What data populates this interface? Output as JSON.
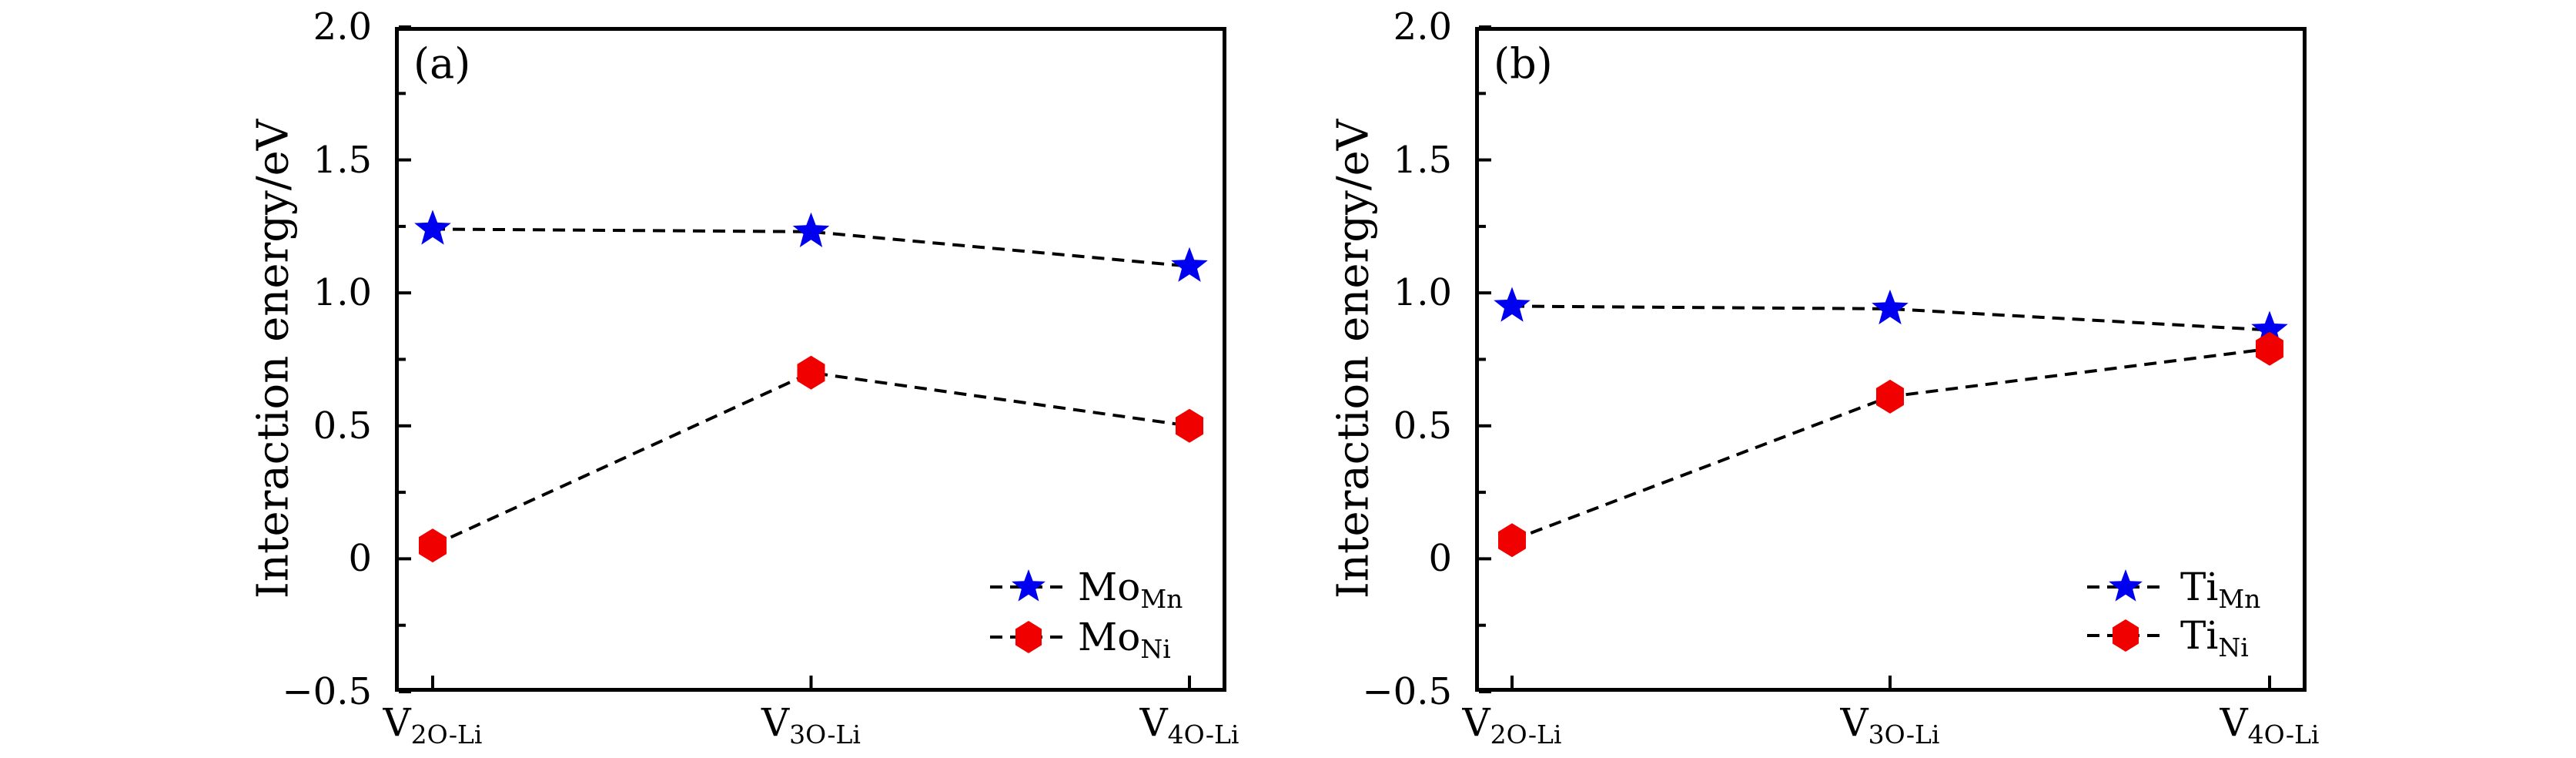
{
  "page": {
    "background": "#ffffff"
  },
  "chart_data": [
    {
      "type": "line",
      "panel_label": "(a)",
      "ylabel": "Interaction energy/eV",
      "xlabel": "",
      "categories": [
        {
          "main": "V",
          "sub": "2O-Li"
        },
        {
          "main": "V",
          "sub": "3O-Li"
        },
        {
          "main": "V",
          "sub": "4O-Li"
        }
      ],
      "ylim": [
        -0.5,
        2.0
      ],
      "y_major_ticks": [
        {
          "value": 2.0,
          "label": "2.0"
        },
        {
          "value": 1.5,
          "label": "1.5"
        },
        {
          "value": 1.0,
          "label": "1.0"
        },
        {
          "value": 0.5,
          "label": "0.5"
        },
        {
          "value": 0.0,
          "label": "0"
        },
        {
          "value": -0.5,
          "label": "−0.5"
        }
      ],
      "y_minor_ticks": [
        1.75,
        1.25,
        0.75,
        0.25,
        -0.25
      ],
      "grid": false,
      "legend_position": "lower right",
      "line_style": "dashed",
      "line_color": "#000000",
      "series": [
        {
          "label_main": "Mo",
          "label_sub": "Mn",
          "marker": "star",
          "marker_color": "#0000f0",
          "values": [
            1.24,
            1.23,
            1.1
          ]
        },
        {
          "label_main": "Mo",
          "label_sub": "Ni",
          "marker": "hexagon",
          "marker_color": "#f10000",
          "values": [
            0.05,
            0.7,
            0.5
          ]
        }
      ]
    },
    {
      "type": "line",
      "panel_label": "(b)",
      "ylabel": "Interaction energy/eV",
      "xlabel": "",
      "categories": [
        {
          "main": "V",
          "sub": "2O-Li"
        },
        {
          "main": "V",
          "sub": "3O-Li"
        },
        {
          "main": "V",
          "sub": "4O-Li"
        }
      ],
      "ylim": [
        -0.5,
        2.0
      ],
      "y_major_ticks": [
        {
          "value": 2.0,
          "label": "2.0"
        },
        {
          "value": 1.5,
          "label": "1.5"
        },
        {
          "value": 1.0,
          "label": "1.0"
        },
        {
          "value": 0.5,
          "label": "0.5"
        },
        {
          "value": 0.0,
          "label": "0"
        },
        {
          "value": -0.5,
          "label": "−0.5"
        }
      ],
      "y_minor_ticks": [
        1.75,
        1.25,
        0.75,
        0.25,
        -0.25
      ],
      "grid": false,
      "legend_position": "lower right",
      "line_style": "dashed",
      "line_color": "#000000",
      "series": [
        {
          "label_main": "Ti",
          "label_sub": "Mn",
          "marker": "star",
          "marker_color": "#0000f0",
          "values": [
            0.95,
            0.94,
            0.86
          ]
        },
        {
          "label_main": "Ti",
          "label_sub": "Ni",
          "marker": "hexagon",
          "marker_color": "#f10000",
          "values": [
            0.07,
            0.61,
            0.79
          ]
        }
      ]
    }
  ]
}
